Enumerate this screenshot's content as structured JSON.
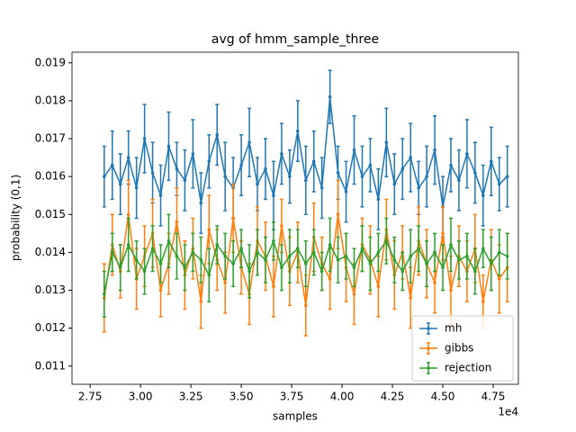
{
  "chart_data": {
    "type": "errorbar",
    "title": "avg of hmm_sample_three",
    "xlabel": "samples",
    "ylabel": "probability (0,1)",
    "x_offset_label": "1e4",
    "x": [
      28200,
      28600,
      29000,
      29400,
      29800,
      30200,
      30600,
      31000,
      31400,
      31800,
      32200,
      32600,
      33000,
      33400,
      33800,
      34200,
      34600,
      35000,
      35400,
      35800,
      36200,
      36600,
      37000,
      37400,
      37800,
      38200,
      38600,
      39000,
      39400,
      39800,
      40200,
      40600,
      41000,
      41400,
      41800,
      42200,
      42600,
      43000,
      43400,
      43800,
      44200,
      44600,
      45000,
      45400,
      45800,
      46200,
      46600,
      47000,
      47400,
      47800,
      48200
    ],
    "series": [
      {
        "name": "mh",
        "color": "#1f77b4",
        "values": [
          0.016,
          0.0163,
          0.0158,
          0.0165,
          0.0157,
          0.017,
          0.0161,
          0.0155,
          0.0168,
          0.0162,
          0.0159,
          0.0166,
          0.0153,
          0.0164,
          0.0171,
          0.016,
          0.0157,
          0.0163,
          0.0169,
          0.0158,
          0.0162,
          0.0155,
          0.0166,
          0.016,
          0.0172,
          0.0159,
          0.0164,
          0.0157,
          0.0181,
          0.0161,
          0.0156,
          0.0167,
          0.016,
          0.0163,
          0.0154,
          0.0169,
          0.0158,
          0.0162,
          0.0165,
          0.0157,
          0.016,
          0.0167,
          0.0152,
          0.0163,
          0.0159,
          0.0166,
          0.0161,
          0.0155,
          0.0164,
          0.0158,
          0.016
        ],
        "yerr": [
          0.0008,
          0.0009,
          0.0008,
          0.0007,
          0.0008,
          0.0009,
          0.0008,
          0.0008,
          0.0009,
          0.0007,
          0.0008,
          0.0009,
          0.0008,
          0.0007,
          0.0008,
          0.0009,
          0.0008,
          0.0008,
          0.0009,
          0.0007,
          0.0008,
          0.0009,
          0.0008,
          0.0007,
          0.0008,
          0.0009,
          0.0008,
          0.0008,
          0.0007,
          0.0007,
          0.0008,
          0.0009,
          0.0008,
          0.0007,
          0.0008,
          0.0009,
          0.0008,
          0.0008,
          0.0009,
          0.0007,
          0.0008,
          0.0009,
          0.0008,
          0.0007,
          0.0008,
          0.0009,
          0.0008,
          0.0008,
          0.0009,
          0.0007,
          0.0008
        ]
      },
      {
        "name": "gibbs",
        "color": "#ff7f0e",
        "values": [
          0.0128,
          0.0142,
          0.0135,
          0.015,
          0.0133,
          0.0139,
          0.0145,
          0.013,
          0.0137,
          0.0148,
          0.0134,
          0.0141,
          0.0127,
          0.0146,
          0.0138,
          0.0132,
          0.0149,
          0.0136,
          0.0129,
          0.0143,
          0.0139,
          0.0131,
          0.0147,
          0.0135,
          0.014,
          0.0126,
          0.0144,
          0.0137,
          0.0133,
          0.015,
          0.0136,
          0.0129,
          0.0142,
          0.0138,
          0.0131,
          0.0146,
          0.0134,
          0.014,
          0.0128,
          0.0143,
          0.0137,
          0.0132,
          0.0145,
          0.013,
          0.0139,
          0.0135,
          0.0141,
          0.0127,
          0.0138,
          0.0133,
          0.0136
        ],
        "yerr": [
          0.0009,
          0.0008,
          0.0007,
          0.0009,
          0.0008,
          0.0008,
          0.0009,
          0.0007,
          0.0008,
          0.0009,
          0.0009,
          0.0008,
          0.0007,
          0.0009,
          0.0008,
          0.0008,
          0.0009,
          0.0007,
          0.0008,
          0.0009,
          0.0009,
          0.0008,
          0.0007,
          0.0009,
          0.0008,
          0.0008,
          0.0009,
          0.0007,
          0.0008,
          0.0009,
          0.0009,
          0.0008,
          0.0007,
          0.0009,
          0.0008,
          0.0008,
          0.0009,
          0.0007,
          0.0008,
          0.0009,
          0.0009,
          0.0008,
          0.0007,
          0.0009,
          0.0008,
          0.0008,
          0.0009,
          0.0007,
          0.0008,
          0.0009,
          0.0009
        ]
      },
      {
        "name": "rejection",
        "color": "#2ca02c",
        "values": [
          0.0129,
          0.014,
          0.0136,
          0.0142,
          0.0138,
          0.0135,
          0.0141,
          0.0137,
          0.0143,
          0.0139,
          0.0136,
          0.014,
          0.0138,
          0.0134,
          0.0142,
          0.0139,
          0.0137,
          0.0141,
          0.0135,
          0.014,
          0.0138,
          0.0143,
          0.0136,
          0.0139,
          0.0141,
          0.0137,
          0.014,
          0.0135,
          0.0142,
          0.0138,
          0.0139,
          0.0136,
          0.0141,
          0.0137,
          0.014,
          0.0143,
          0.0138,
          0.0135,
          0.0139,
          0.0141,
          0.0137,
          0.014,
          0.0136,
          0.0142,
          0.0138,
          0.0139,
          0.0135,
          0.0141,
          0.0137,
          0.014,
          0.0139
        ],
        "yerr": [
          0.0006,
          0.0005,
          0.0006,
          0.0007,
          0.0005,
          0.0006,
          0.0006,
          0.0005,
          0.0007,
          0.0006,
          0.0006,
          0.0005,
          0.0006,
          0.0007,
          0.0005,
          0.0006,
          0.0006,
          0.0005,
          0.0007,
          0.0006,
          0.0006,
          0.0005,
          0.0006,
          0.0007,
          0.0005,
          0.0006,
          0.0006,
          0.0005,
          0.0007,
          0.0006,
          0.0006,
          0.0005,
          0.0006,
          0.0007,
          0.0005,
          0.0006,
          0.0006,
          0.0005,
          0.0007,
          0.0006,
          0.0006,
          0.0005,
          0.0006,
          0.0007,
          0.0005,
          0.0006,
          0.0006,
          0.0005,
          0.0007,
          0.0006,
          0.0006
        ]
      }
    ],
    "xlim": [
      26600,
      48750
    ],
    "ylim": [
      0.01052,
      0.01928
    ],
    "xticks": [
      {
        "value": 27500,
        "label": "2.75"
      },
      {
        "value": 30000,
        "label": "3.00"
      },
      {
        "value": 32500,
        "label": "3.25"
      },
      {
        "value": 35000,
        "label": "3.50"
      },
      {
        "value": 37500,
        "label": "3.75"
      },
      {
        "value": 40000,
        "label": "4.00"
      },
      {
        "value": 42500,
        "label": "4.25"
      },
      {
        "value": 45000,
        "label": "4.50"
      },
      {
        "value": 47500,
        "label": "4.75"
      }
    ],
    "yticks": [
      0.011,
      0.012,
      0.013,
      0.014,
      0.015,
      0.016,
      0.017,
      0.018,
      0.019
    ],
    "legend": "lower right",
    "grid": false
  }
}
